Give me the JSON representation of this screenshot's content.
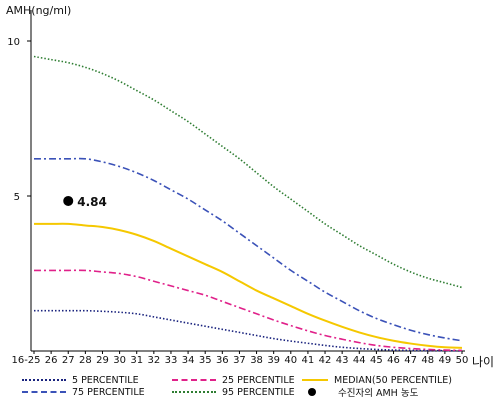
{
  "chart_data": {
    "type": "line",
    "ylabel": "AMH(ng/ml)",
    "xlabel": "나이",
    "yticks": [
      5,
      10
    ],
    "ylim": [
      0,
      11
    ],
    "categories": [
      "16-25",
      "26",
      "27",
      "28",
      "29",
      "30",
      "31",
      "32",
      "33",
      "34",
      "35",
      "36",
      "37",
      "38",
      "39",
      "40",
      "41",
      "42",
      "43",
      "44",
      "45",
      "46",
      "47",
      "48",
      "49",
      "50"
    ],
    "series": [
      {
        "name": "5 PERCENTILE",
        "color": "#1a237e",
        "dash": "1.5,2",
        "values": [
          1.3,
          1.3,
          1.3,
          1.3,
          1.28,
          1.25,
          1.2,
          1.1,
          1.0,
          0.9,
          0.8,
          0.7,
          0.6,
          0.5,
          0.4,
          0.32,
          0.25,
          0.18,
          0.12,
          0.08,
          0.05,
          0.03,
          0.02,
          0.01,
          0.01,
          0.0
        ]
      },
      {
        "name": "25 PERCENTILE",
        "color": "#e0218a",
        "dash": "7,3,2,3",
        "values": [
          2.6,
          2.6,
          2.6,
          2.6,
          2.55,
          2.5,
          2.4,
          2.25,
          2.1,
          1.95,
          1.8,
          1.6,
          1.4,
          1.2,
          1.0,
          0.82,
          0.65,
          0.5,
          0.38,
          0.27,
          0.18,
          0.12,
          0.08,
          0.05,
          0.03,
          0.02
        ]
      },
      {
        "name": "MEDIAN(50 PERCENTILE)",
        "color": "#f5c800",
        "dash": "",
        "values": [
          4.1,
          4.1,
          4.1,
          4.05,
          4.0,
          3.9,
          3.75,
          3.55,
          3.3,
          3.05,
          2.8,
          2.55,
          2.25,
          1.95,
          1.7,
          1.45,
          1.2,
          0.98,
          0.78,
          0.6,
          0.45,
          0.33,
          0.24,
          0.17,
          0.12,
          0.1
        ]
      },
      {
        "name": "75 PERCENTILE",
        "color": "#3b52b8",
        "dash": "7,3,2,3",
        "values": [
          6.2,
          6.2,
          6.2,
          6.2,
          6.1,
          5.95,
          5.75,
          5.5,
          5.2,
          4.9,
          4.55,
          4.2,
          3.8,
          3.4,
          3.0,
          2.6,
          2.25,
          1.9,
          1.6,
          1.3,
          1.05,
          0.85,
          0.67,
          0.53,
          0.42,
          0.33
        ]
      },
      {
        "name": "95 PERCENTILE",
        "color": "#2e7d32",
        "dash": "1.5,2",
        "values": [
          9.5,
          9.4,
          9.3,
          9.15,
          8.95,
          8.7,
          8.4,
          8.1,
          7.75,
          7.4,
          7.0,
          6.6,
          6.2,
          5.75,
          5.3,
          4.9,
          4.5,
          4.1,
          3.75,
          3.4,
          3.1,
          2.8,
          2.55,
          2.35,
          2.2,
          2.05
        ]
      }
    ],
    "patient": {
      "label": "수진자의 AMH 농도",
      "x": "27",
      "value": 4.84,
      "value_label": "4.84",
      "color": "#000000"
    }
  },
  "legend": {
    "items": [
      {
        "name": "5 PERCENTILE",
        "color": "#1a237e",
        "style": "dotted"
      },
      {
        "name": "25 PERCENTILE",
        "color": "#e0218a",
        "style": "dashdot"
      },
      {
        "name": "MEDIAN(50 PERCENTILE)",
        "color": "#f5c800",
        "style": "solid"
      },
      {
        "name": "75 PERCENTILE",
        "color": "#3b52b8",
        "style": "dashdot"
      },
      {
        "name": "95 PERCENTILE",
        "color": "#2e7d32",
        "style": "dotted"
      },
      {
        "name": "수진자의 AMH 농도",
        "color": "#000000",
        "style": "dot"
      }
    ]
  }
}
